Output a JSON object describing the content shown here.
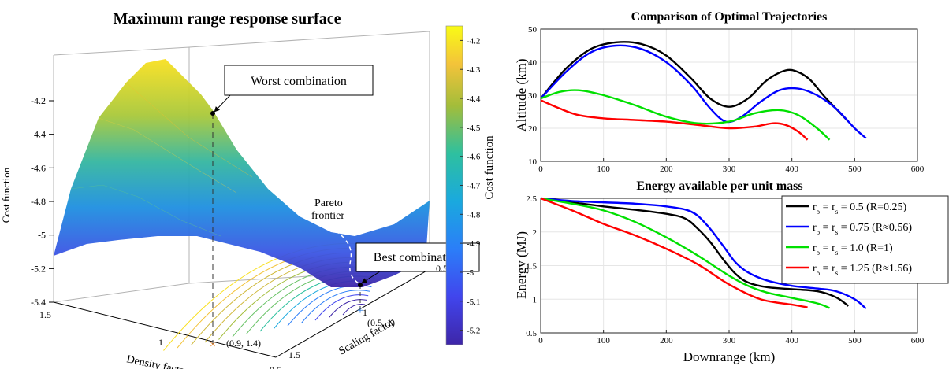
{
  "colors": {
    "series_black": "#000000",
    "series_blue": "#0000ff",
    "series_green": "#00e000",
    "series_red": "#ff0000",
    "colorbar_low": "#3e26a8",
    "colorbar_high": "#f9fb15",
    "grid": "#e6e6e6"
  },
  "chart_data": [
    {
      "type": "surface",
      "title": "Maximum range response surface",
      "xlabel": "Density factor",
      "ylabel": "Scaling factor",
      "zlabel": "Cost function",
      "colorbar_label": "Cost function",
      "x_ticks": [
        "1.5",
        "1",
        "0.5"
      ],
      "y_ticks": [
        "1.5",
        "1",
        "0.5"
      ],
      "z_ticks": [
        "-4.2",
        "-4.4",
        "-4.6",
        "-4.8",
        "-5",
        "-5.2",
        "-5.4"
      ],
      "zlim": [
        -5.4,
        -4.1
      ],
      "colorbar_ticks": [
        "-4.2",
        "-4.3",
        "-4.4",
        "-4.5",
        "-4.6",
        "-4.7",
        "-4.8",
        "-4.9",
        "-5",
        "-5.1",
        "-5.2"
      ],
      "colorbar_range": [
        -5.25,
        -4.15
      ],
      "annotations": {
        "worst": "Worst combination",
        "best": "Best combination",
        "pareto_line1": "Pareto",
        "pareto_line2": "frontier",
        "worst_point_label": "(0.9, 1.4)",
        "best_point_label": "(0.5, 1)"
      },
      "points": [
        {
          "name": "worst",
          "density": 0.9,
          "scaling": 1.4,
          "cost": -4.25
        },
        {
          "name": "best",
          "density": 0.5,
          "scaling": 1.0,
          "cost": -5.27
        }
      ]
    },
    {
      "type": "line",
      "title": "Comparison of Optimal Trajectories",
      "xlabel": "",
      "ylabel": "Altitude (km)",
      "xlim": [
        0,
        600
      ],
      "ylim": [
        10,
        50
      ],
      "x_ticks": [
        0,
        100,
        200,
        300,
        400,
        500,
        600
      ],
      "y_ticks": [
        10,
        20,
        30,
        40,
        50
      ],
      "grid": true,
      "series": [
        {
          "color": "#000000",
          "x": [
            0,
            40,
            80,
            120,
            160,
            200,
            240,
            270,
            300,
            330,
            360,
            390,
            410,
            430,
            450,
            470,
            490
          ],
          "y": [
            29,
            38,
            44,
            46,
            45.5,
            42,
            35,
            29,
            26.5,
            29,
            34.5,
            37.5,
            37,
            34.5,
            30,
            26,
            22
          ]
        },
        {
          "color": "#0000ff",
          "x": [
            0,
            40,
            80,
            120,
            160,
            200,
            240,
            270,
            295,
            320,
            350,
            380,
            410,
            440,
            470,
            500,
            518
          ],
          "y": [
            29,
            37,
            43,
            45,
            44,
            40,
            33,
            26,
            22,
            23.5,
            28,
            31.5,
            32,
            30,
            26,
            20,
            17
          ]
        },
        {
          "color": "#00e000",
          "x": [
            0,
            30,
            60,
            100,
            150,
            200,
            250,
            300,
            340,
            380,
            410,
            440,
            460
          ],
          "y": [
            29,
            31,
            31.5,
            30,
            27,
            23.5,
            21.5,
            22,
            24.5,
            25.5,
            24,
            20,
            16.5
          ]
        },
        {
          "color": "#ff0000",
          "x": [
            0,
            30,
            60,
            100,
            150,
            200,
            250,
            300,
            340,
            370,
            390,
            410,
            425
          ],
          "y": [
            28.5,
            26,
            24,
            23,
            22.5,
            22,
            21,
            20,
            20.5,
            21.5,
            21,
            19,
            16.5
          ]
        }
      ]
    },
    {
      "type": "line",
      "title": "Energy available per unit mass",
      "xlabel": "Downrange (km)",
      "ylabel": "Energy (MJ)",
      "xlim": [
        0,
        600
      ],
      "ylim": [
        0.5,
        2.5
      ],
      "x_ticks": [
        0,
        100,
        200,
        300,
        400,
        500,
        600
      ],
      "y_ticks": [
        0.5,
        1,
        1.5,
        2,
        2.5
      ],
      "grid": true,
      "legend_position": "top-right",
      "series": [
        {
          "name": "r = r = 0.5 (R=0.25)",
          "color": "#000000",
          "x": [
            0,
            50,
            100,
            150,
            200,
            230,
            250,
            270,
            290,
            310,
            330,
            360,
            400,
            440,
            470,
            490
          ],
          "y": [
            2.5,
            2.44,
            2.38,
            2.33,
            2.27,
            2.2,
            2.05,
            1.85,
            1.6,
            1.38,
            1.25,
            1.18,
            1.15,
            1.12,
            1.03,
            0.9
          ]
        },
        {
          "name": "r = r = 0.75 (R≈0.56)",
          "color": "#0000ff",
          "x": [
            0,
            50,
            100,
            150,
            200,
            240,
            265,
            290,
            310,
            330,
            360,
            400,
            440,
            470,
            500,
            518
          ],
          "y": [
            2.5,
            2.46,
            2.44,
            2.42,
            2.38,
            2.3,
            2.1,
            1.8,
            1.55,
            1.4,
            1.28,
            1.2,
            1.16,
            1.12,
            1.0,
            0.86
          ]
        },
        {
          "name": "r = r = 1.0 (R=1)",
          "color": "#00e000",
          "x": [
            0,
            50,
            100,
            150,
            200,
            250,
            300,
            330,
            360,
            400,
            440,
            460
          ],
          "y": [
            2.5,
            2.42,
            2.32,
            2.15,
            1.92,
            1.65,
            1.35,
            1.2,
            1.1,
            1.02,
            0.94,
            0.87
          ]
        },
        {
          "name": "r = r = 1.25 (R≈1.56)",
          "color": "#ff0000",
          "x": [
            0,
            50,
            100,
            150,
            200,
            250,
            300,
            350,
            400,
            425
          ],
          "y": [
            2.5,
            2.32,
            2.12,
            1.95,
            1.75,
            1.52,
            1.22,
            1.0,
            0.92,
            0.88
          ]
        }
      ],
      "legend": {
        "entries": [
          {
            "sub": [
              "ρ",
              "s"
            ],
            "text": " = 0.5 (R=0.25)"
          },
          {
            "sub": [
              "ρ",
              "s"
            ],
            "text": " = 0.75 (R≈0.56)"
          },
          {
            "sub": [
              "ρ",
              "s"
            ],
            "text": " = 1.0 (R=1)"
          },
          {
            "sub": [
              "ρ",
              "s"
            ],
            "text": " = 1.25 (R≈1.56)"
          }
        ]
      }
    }
  ]
}
